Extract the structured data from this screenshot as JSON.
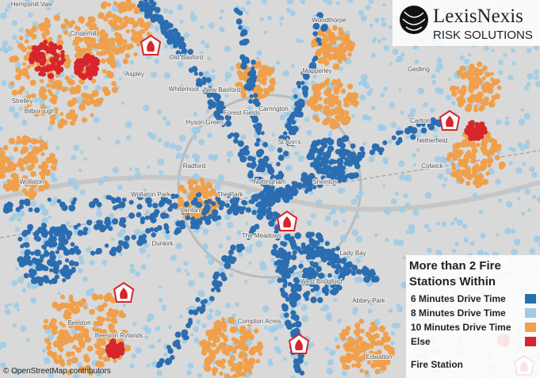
{
  "logo": {
    "name": "LexisNexis",
    "tagline": "RISK SOLUTIONS"
  },
  "legend": {
    "title": "More than 2 Fire Stations Within",
    "items": [
      {
        "label": "6 Minutes Drive Time",
        "color": "#2a6db0"
      },
      {
        "label": "8 Minutes Drive Time",
        "color": "#9fcbe6"
      },
      {
        "label": "10 Minutes Drive Time",
        "color": "#f0a04b"
      },
      {
        "label": "Else",
        "color": "#d7262b"
      }
    ],
    "station": "Fire Station"
  },
  "places": [
    "Hempshill Vale",
    "Cinderhill",
    "Aspley",
    "Strelley",
    "Bilborough",
    "Old Basford",
    "Whitemoor",
    "New Basford",
    "Carrington",
    "Hyson Green",
    "Forest Fields",
    "Mapperley",
    "Woodthorpe",
    "Gedling",
    "Carlton",
    "Netherfield",
    "Colwick",
    "St Ann's",
    "Sneinton",
    "Radford",
    "Nottingham",
    "The Park",
    "Lenton",
    "Wollaton",
    "Wollaton Park",
    "Dunkirk",
    "The Meadows",
    "Lady Bay",
    "West Bridgford",
    "Abbey Park",
    "Beeston",
    "Beeston Rylands",
    "Compton Acres",
    "Edwalton"
  ],
  "attribution": "© OpenStreetMap contributors"
}
